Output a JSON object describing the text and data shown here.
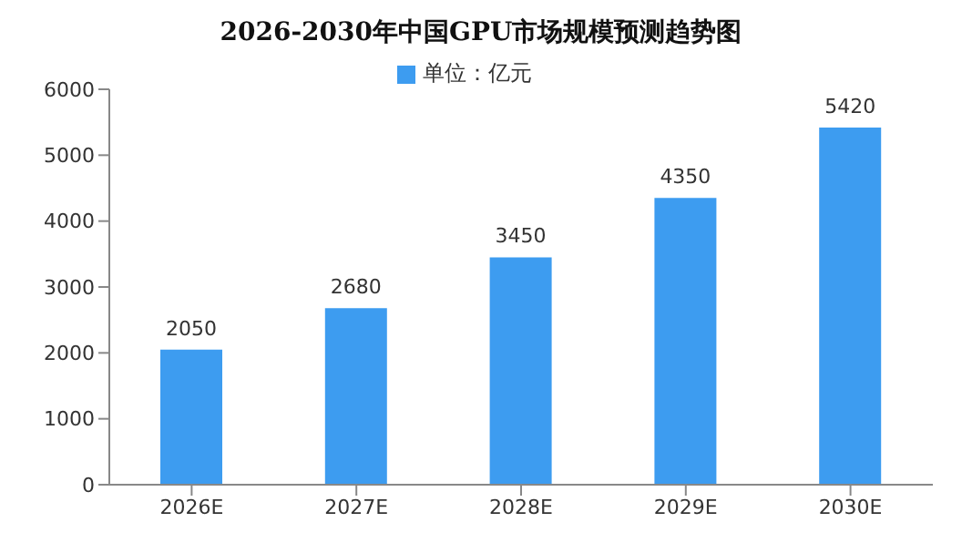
{
  "chart_data": {
    "type": "bar",
    "title": "2026-2030年中国GPU市场规模预测趋势图",
    "categories": [
      "2026E",
      "2027E",
      "2028E",
      "2029E",
      "2030E"
    ],
    "series": [
      {
        "name": "单位：亿元",
        "color": "#3d9cf0",
        "values": [
          2050,
          2680,
          3450,
          4350,
          5420
        ]
      }
    ],
    "ylim": [
      0,
      6000
    ],
    "yticks": [
      0,
      1000,
      2000,
      3000,
      4000,
      5000,
      6000
    ],
    "grid": false,
    "legend": "top",
    "data_labels": true
  }
}
